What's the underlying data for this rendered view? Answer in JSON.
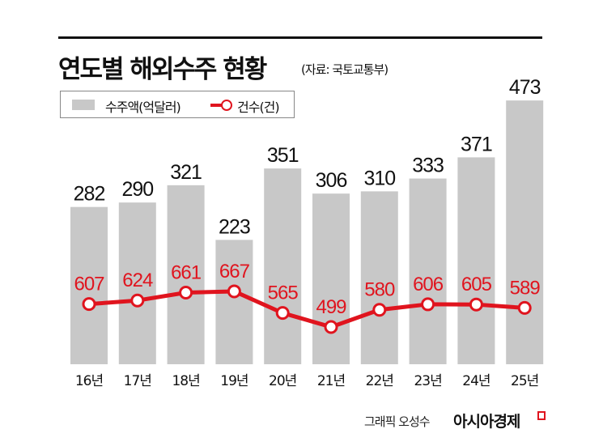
{
  "title": "연도별 해외수주 현황",
  "source": "(자료: 국토교통부)",
  "legend": {
    "bar_label": "수주액(억달러)",
    "line_label": "건수(건)"
  },
  "credit": "그래픽 오성수",
  "logo": "아시아경제",
  "colors": {
    "bar": "#c8c8c8",
    "line": "#e0141e",
    "text": "#111111"
  },
  "chart_data": {
    "type": "bar+line",
    "categories": [
      "16년",
      "17년",
      "18년",
      "19년",
      "20년",
      "21년",
      "22년",
      "23년",
      "24년",
      "25년"
    ],
    "series": [
      {
        "name": "수주액(억달러)",
        "type": "bar",
        "values": [
          282,
          290,
          321,
          223,
          351,
          306,
          310,
          333,
          371,
          473
        ]
      },
      {
        "name": "건수(건)",
        "type": "line",
        "values": [
          607,
          624,
          661,
          667,
          565,
          499,
          580,
          606,
          605,
          589
        ]
      }
    ],
    "grid": false,
    "legend_position": "top-left"
  }
}
